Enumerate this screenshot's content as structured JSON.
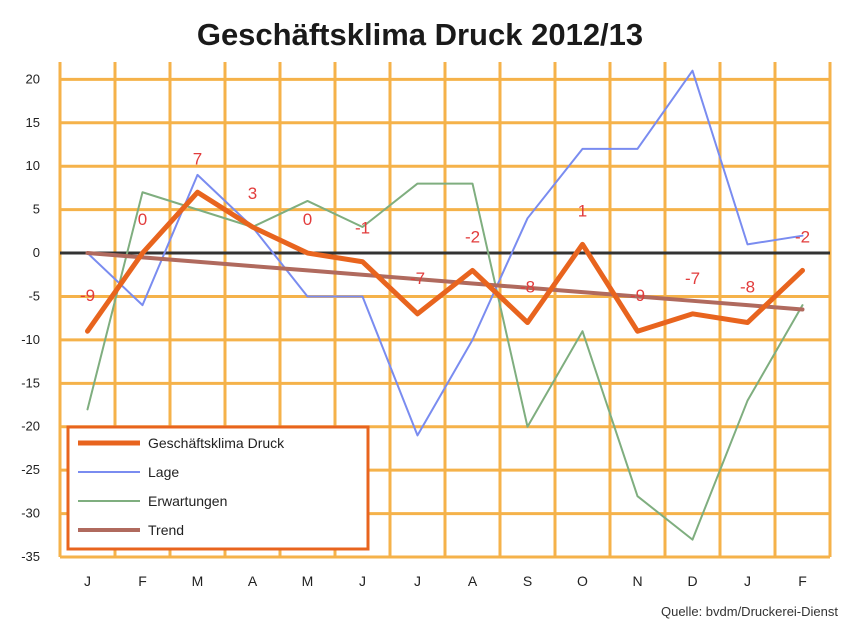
{
  "chart_data": {
    "type": "line",
    "title": "Geschäftsklima Druck 2012/13",
    "categories": [
      "J",
      "F",
      "M",
      "A",
      "M",
      "J",
      "J",
      "A",
      "S",
      "O",
      "N",
      "D",
      "J",
      "F"
    ],
    "ylim": [
      -35,
      22
    ],
    "yticks": [
      20,
      15,
      10,
      5,
      0,
      -5,
      -10,
      -15,
      -20,
      -25,
      -30,
      -35
    ],
    "grid": true,
    "legend_position": "bottom-left",
    "series": [
      {
        "name": "Geschäftsklima Druck",
        "color": "#e8641e",
        "values": [
          -9,
          0,
          7,
          3,
          0,
          -1,
          -7,
          -2,
          -8,
          1,
          -9,
          -7,
          -8,
          -2
        ]
      },
      {
        "name": "Lage",
        "color": "#7a8cf0",
        "values": [
          0,
          -6,
          9,
          3,
          -5,
          -5,
          -21,
          -10,
          4,
          12,
          12,
          21,
          1,
          2
        ]
      },
      {
        "name": "Erwartungen",
        "color": "#7fae7f",
        "values": [
          -18,
          7,
          5,
          3,
          6,
          3,
          8,
          8,
          -20,
          -9,
          -28,
          -33,
          -17,
          -6
        ]
      },
      {
        "name": "Trend",
        "color": "#b06a5e",
        "values": [
          0,
          -0.5,
          -1,
          -1.5,
          -2,
          -2.5,
          -3,
          -3.5,
          -4,
          -4.5,
          -5,
          -5.5,
          -6,
          -6.5
        ]
      }
    ],
    "data_labels": [
      "-9",
      "0",
      "7",
      "3",
      "0",
      "-1",
      "-7",
      "-2",
      "-8",
      "1",
      "-9",
      "-7",
      "-8",
      "-2"
    ],
    "source": "Quelle: bvdm/Druckerei-Dienst"
  }
}
